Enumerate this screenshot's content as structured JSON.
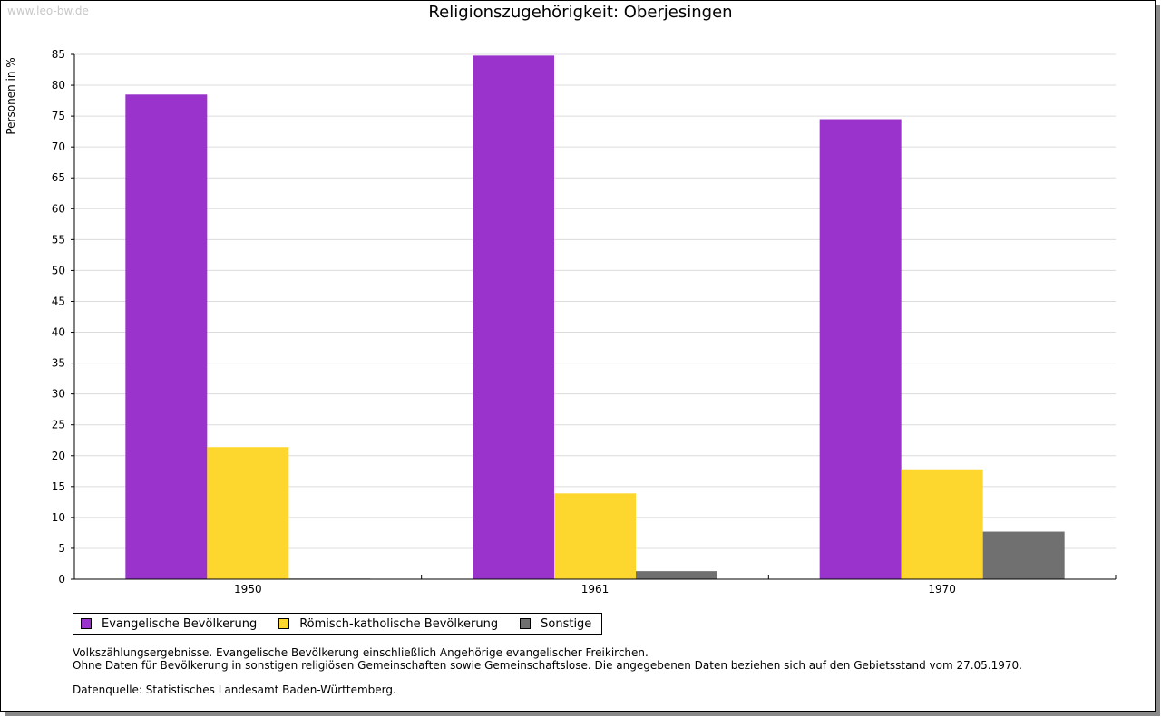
{
  "watermark": "www.leo-bw.de",
  "chart_data": {
    "type": "bar",
    "title": "Religionszugehörigkeit: Oberjesingen",
    "ylabel": "Personen in %",
    "xlabel": "",
    "ylim": [
      0,
      85
    ],
    "yticks": [
      0,
      5,
      10,
      15,
      20,
      25,
      30,
      35,
      40,
      45,
      50,
      55,
      60,
      65,
      70,
      75,
      80,
      85
    ],
    "grid": true,
    "legend_position": "bottom-left",
    "categories": [
      "1950",
      "1961",
      "1970"
    ],
    "series": [
      {
        "name": "Evangelische Bevölkerung",
        "color": "#9933cc",
        "values": [
          78.5,
          84.8,
          74.5
        ]
      },
      {
        "name": "Römisch-katholische Bevölkerung",
        "color": "#fdd62e",
        "values": [
          21.4,
          13.9,
          17.8
        ]
      },
      {
        "name": "Sonstige",
        "color": "#707070",
        "values": [
          0.1,
          1.3,
          7.7
        ]
      }
    ]
  },
  "notes": {
    "line1": "Volkszählungsergebnisse. Evangelische Bevölkerung einschließlich Angehörige evangelischer Freikirchen.",
    "line2": "Ohne Daten für Bevölkerung in sonstigen religiösen Gemeinschaften sowie Gemeinschaftslose. Die angegebenen Daten beziehen sich auf den Gebietsstand vom 27.05.1970.",
    "source": "Datenquelle: Statistisches Landesamt Baden-Württemberg."
  }
}
